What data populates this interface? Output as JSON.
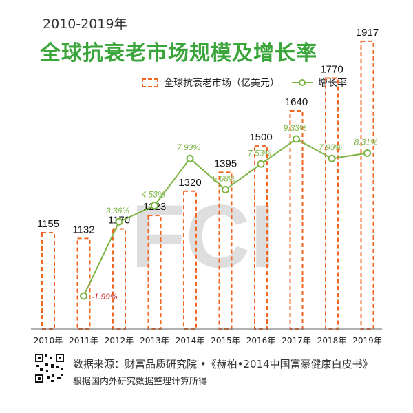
{
  "header": {
    "subtitle": "2010-2019年",
    "title": "全球抗衰老市场规模及增长率"
  },
  "legend": {
    "bar_label": "全球抗衰老市场（亿美元）",
    "line_label": "增长率"
  },
  "watermark": "FCI",
  "footer": {
    "source": "数据来源：财富品质研究院 •《赫柏•2014中国富豪健康白皮书》",
    "note": "根据国内外研究数据整理计算所得"
  },
  "colors": {
    "bar": "#f26522",
    "line": "#7cb342",
    "title": "#3aa53a",
    "negative": "#c62828"
  },
  "chart_data": {
    "type": "bar",
    "categories": [
      "2010年",
      "2011年",
      "2012年",
      "2013年",
      "2014年",
      "2015年",
      "2016年",
      "2017年",
      "2018年",
      "2019年"
    ],
    "series": [
      {
        "name": "全球抗衰老市场（亿美元）",
        "type": "bar",
        "values": [
          1155,
          1132,
          1170,
          1223,
          1320,
          1395,
          1500,
          1640,
          1770,
          1917
        ],
        "labels": [
          "1155",
          "1132",
          "1170",
          "1223",
          "1320",
          "1395",
          "1500",
          "1640",
          "1770",
          "1917"
        ]
      },
      {
        "name": "增长率",
        "type": "line",
        "values": [
          null,
          -1.99,
          3.36,
          4.53,
          7.93,
          5.68,
          7.53,
          9.33,
          7.93,
          8.31
        ],
        "labels": [
          "",
          "-1.99%",
          "3.36%",
          "4.53%",
          "7.93%",
          "5.68%",
          "7.53%",
          "9.33%",
          "7.93%",
          "8.31%"
        ]
      }
    ],
    "bar_range": [
      0,
      2000
    ],
    "rate_range": [
      -6,
      13
    ],
    "grid": false,
    "legend_position": "top-right"
  }
}
